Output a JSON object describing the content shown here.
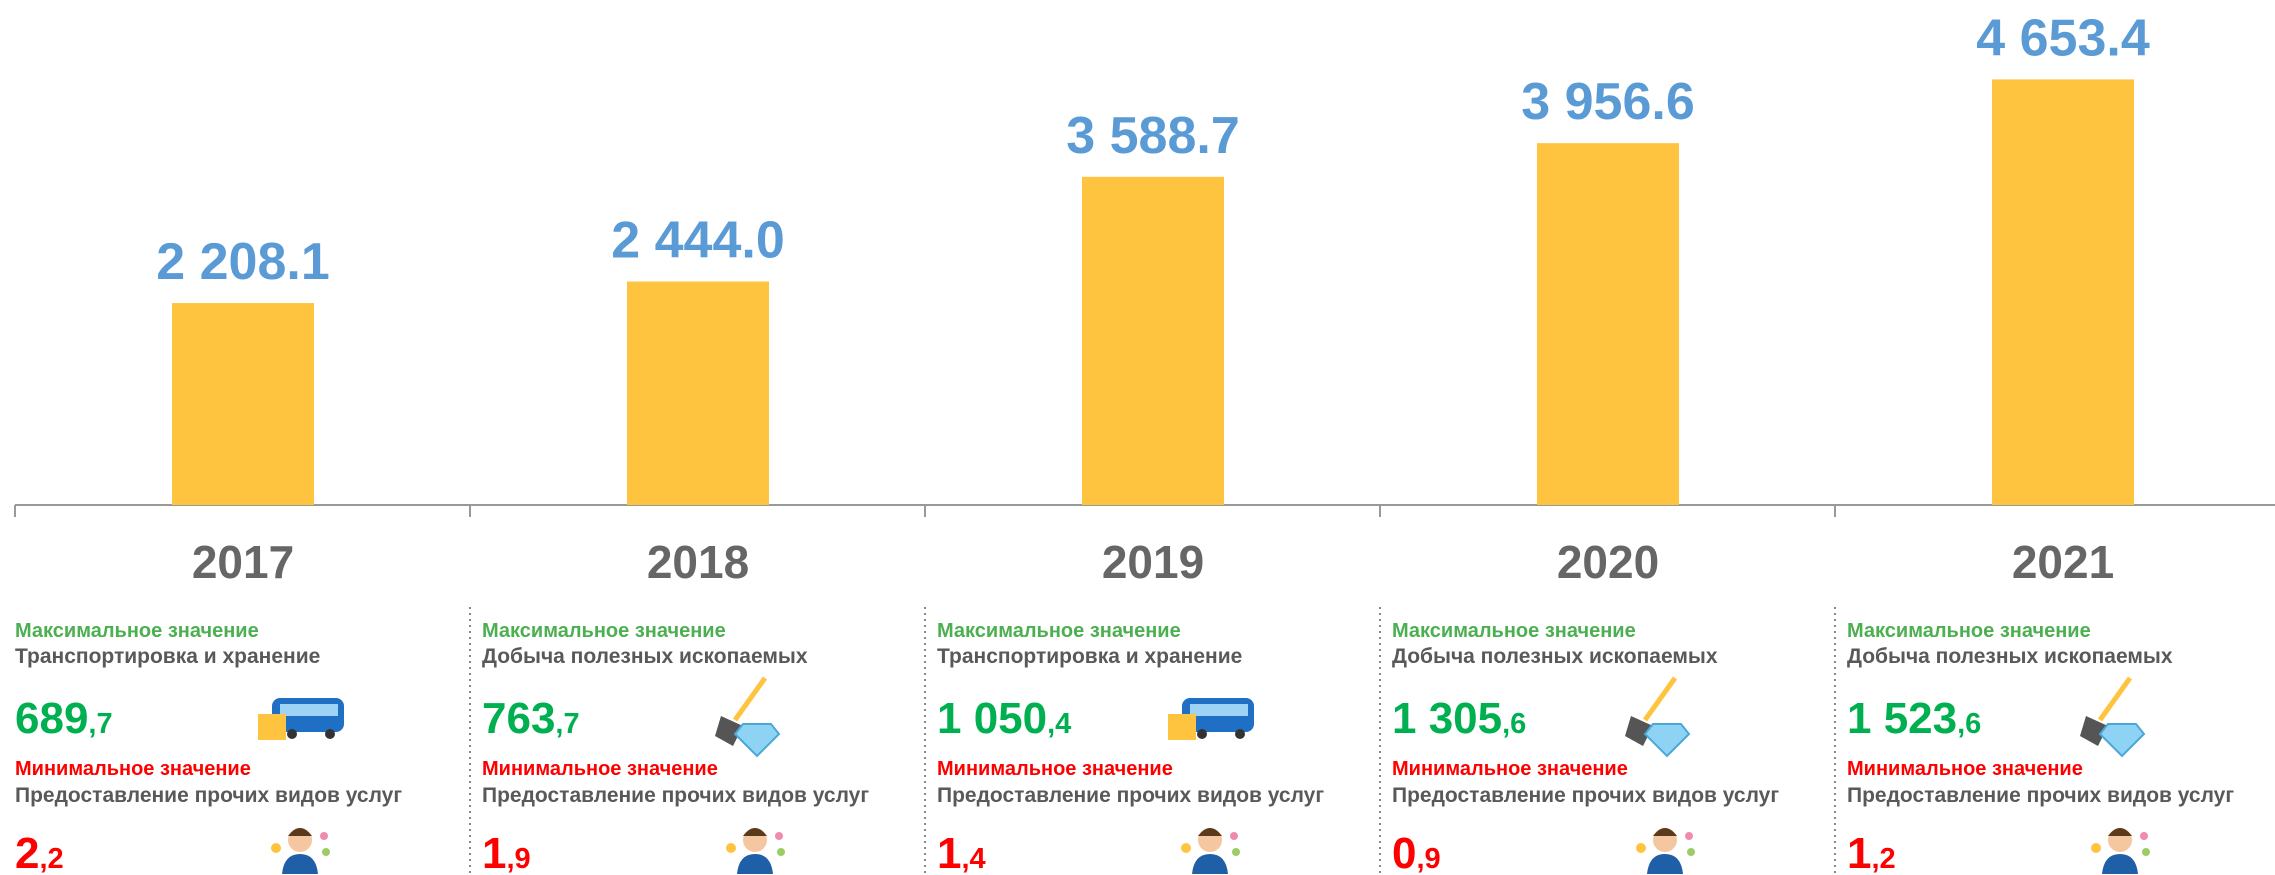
{
  "chart_data": {
    "type": "bar",
    "categories": [
      "2017",
      "2018",
      "2019",
      "2020",
      "2021"
    ],
    "values": [
      2208.1,
      2444.0,
      3588.7,
      3956.6,
      4653.4
    ],
    "value_labels": [
      "2 208.1",
      "2 444.0",
      "3 588.7",
      "3 956.6",
      "4 653.4"
    ],
    "color": "#ffc43f",
    "label_color": "#5b9bd5",
    "ylim": [
      0,
      5500
    ]
  },
  "panels": [
    {
      "max_label": "Максимальное значение",
      "max_category": "Транспортировка и хранение",
      "max_value": "689,7",
      "min_label": "Минимальное значение",
      "min_category": "Предоставление прочих видов услуг",
      "min_value": "2,2"
    },
    {
      "max_label": "Максимальное значение",
      "max_category": "Добыча полезных ископаемых",
      "max_value": "763,7",
      "min_label": "Минимальное значение",
      "min_category": "Предоставление прочих видов услуг",
      "min_value": "1,9"
    },
    {
      "max_label": "Максимальное значение",
      "max_category": "Транспортировка и хранение",
      "max_value": "1 050,4",
      "min_label": "Минимальное значение",
      "min_category": "Предоставление прочих видов услуг",
      "min_value": "1,4"
    },
    {
      "max_label": "Максимальное значение",
      "max_category": "Добыча полезных ископаемых",
      "max_value": "1 305,6",
      "min_label": "Минимальное значение",
      "min_category": "Предоставление прочих видов услуг",
      "min_value": "0,9"
    },
    {
      "max_label": "Максимальное значение",
      "max_category": "Добыча полезных ископаемых",
      "max_value": "1 523,6",
      "min_label": "Минимальное значение",
      "min_category": "Предоставление прочих видов услуг",
      "min_value": "1,2"
    }
  ]
}
